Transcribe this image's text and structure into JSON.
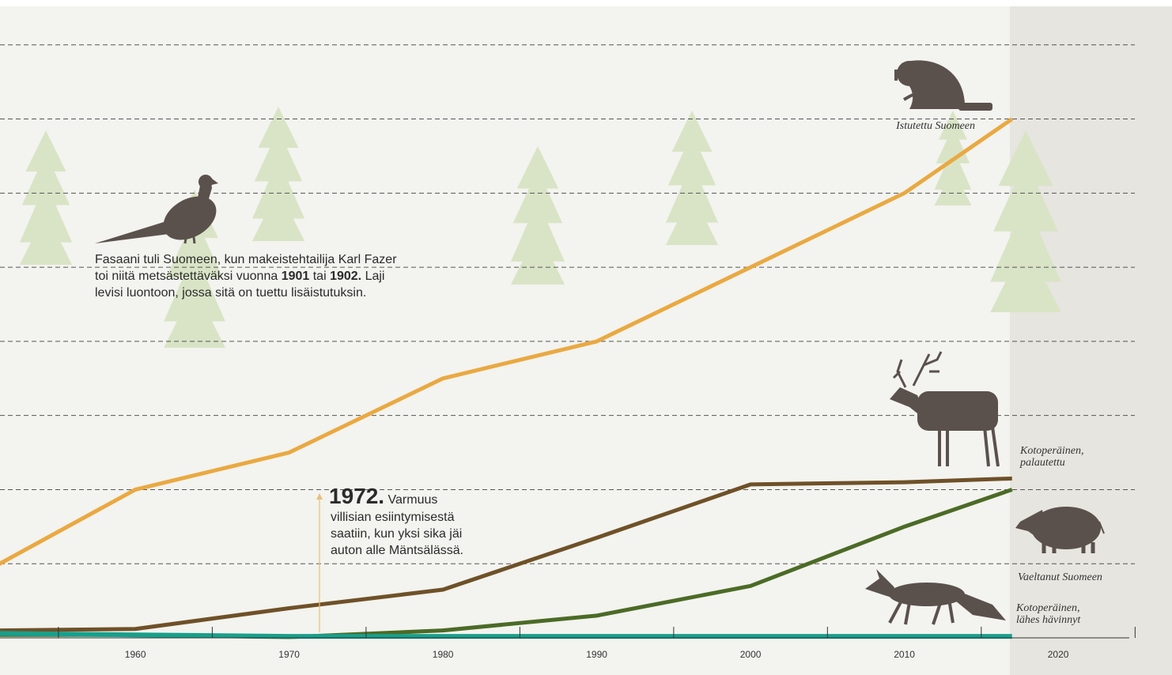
{
  "chart_data": {
    "type": "line",
    "x": [
      1951,
      1960,
      1970,
      1980,
      1990,
      2000,
      2010,
      2017
    ],
    "xlim": [
      1951.2,
      2027.4
    ],
    "xticks": [
      1960,
      1970,
      1980,
      1990,
      2000,
      2010,
      2020
    ],
    "minor_xticks": [
      1955,
      1965,
      1975,
      1985,
      1995,
      2005,
      2015,
      2025
    ],
    "ylim": [
      0,
      8.52
    ],
    "yticks": [
      1,
      2,
      3,
      4,
      5,
      6,
      7,
      8
    ],
    "grid": true,
    "series": [
      {
        "name": "Istutettu Suomeen",
        "color": "#e9a942",
        "values": [
          0.98,
          2,
          2.5,
          3.5,
          4,
          5,
          6,
          7
        ]
      },
      {
        "name": "Kotoperäinen, palautettu",
        "color": "#6f5128",
        "values": [
          0.1,
          0.12,
          0.4,
          0.65,
          1.35,
          2.07,
          2.1,
          2.15
        ]
      },
      {
        "name": "Vaeltanut Suomeen",
        "color": "#4b6b26",
        "values": [
          0.04,
          0.04,
          0.01,
          0.1,
          0.3,
          0.7,
          1.5,
          2.0
        ]
      },
      {
        "name": "Kotoperäinen, lähes hävinnyt",
        "color": "#17a08c",
        "values": [
          0.06,
          0.04,
          0.02,
          0.02,
          0.02,
          0.02,
          0.02,
          0.02
        ]
      }
    ],
    "annotations": [
      {
        "lines": [
          [
            "Fasaani tuli Suomeen, kun makeistehtailija Karl Fazer"
          ],
          [
            "toi niitä metsästettäväksi vuonna ",
            "1901",
            " tai ",
            "1902.",
            " Laji"
          ],
          [
            "levisi luontoon, jossa sitä on tuettu lisäistutuksin."
          ]
        ]
      },
      {
        "lines": [
          [
            "1972.",
            " Varmuus"
          ],
          [
            "villisian esiintymisestä"
          ],
          [
            "saatiin, kun yksi sika jäi"
          ],
          [
            "auton alle Mäntsälässä."
          ]
        ]
      }
    ]
  }
}
